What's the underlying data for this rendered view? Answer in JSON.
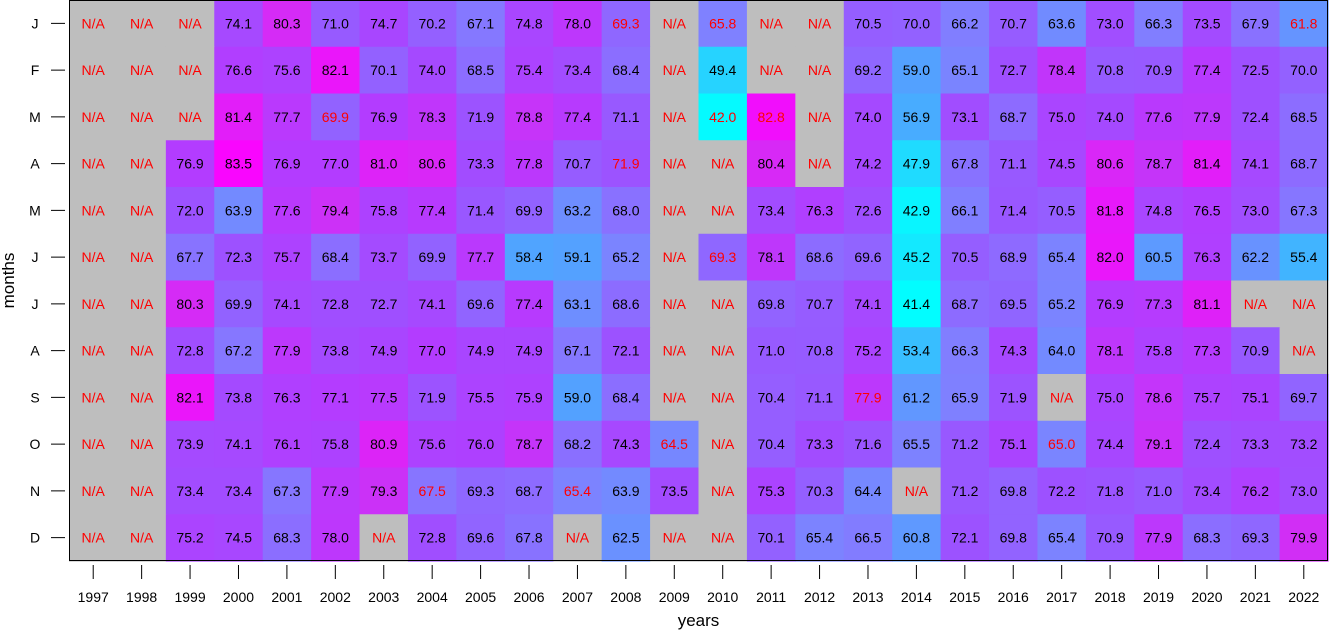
{
  "chart_data": {
    "type": "heatmap",
    "xlabel": "years",
    "ylabel": "months",
    "x": [
      "1997",
      "1998",
      "1999",
      "2000",
      "2001",
      "2002",
      "2003",
      "2004",
      "2005",
      "2006",
      "2007",
      "2008",
      "2009",
      "2010",
      "2011",
      "2012",
      "2013",
      "2014",
      "2015",
      "2016",
      "2017",
      "2018",
      "2019",
      "2020",
      "2021",
      "2022"
    ],
    "y": [
      "J",
      "F",
      "M",
      "A",
      "M",
      "J",
      "J",
      "A",
      "S",
      "O",
      "N",
      "D"
    ],
    "missing_label": "N/A",
    "na_fill": "#bebebe",
    "text_colors": {
      "normal": "#000000",
      "flagged": "#ff0000"
    },
    "color_scale": [
      {
        "at": 41,
        "color": "#00ffff"
      },
      {
        "at": 58,
        "color": "#4da6ff"
      },
      {
        "at": 66,
        "color": "#8080ff"
      },
      {
        "at": 72,
        "color": "#9c52ff"
      },
      {
        "at": 77,
        "color": "#b33cff"
      },
      {
        "at": 80,
        "color": "#d22ef5"
      },
      {
        "at": 84,
        "color": "#ff00ff"
      }
    ],
    "values": [
      [
        null,
        null,
        null,
        74.1,
        80.3,
        71.0,
        74.7,
        70.2,
        67.1,
        74.8,
        78.0,
        69.3,
        null,
        65.8,
        null,
        null,
        70.5,
        70.0,
        66.2,
        70.7,
        63.6,
        73.0,
        66.3,
        73.5,
        67.9,
        61.8
      ],
      [
        null,
        null,
        null,
        76.6,
        75.6,
        82.1,
        70.1,
        74.0,
        68.5,
        75.4,
        73.4,
        68.4,
        null,
        49.4,
        null,
        null,
        69.2,
        59.0,
        65.1,
        72.7,
        78.4,
        70.8,
        70.9,
        77.4,
        72.5,
        70.0
      ],
      [
        null,
        null,
        null,
        81.4,
        77.7,
        69.9,
        76.9,
        78.3,
        71.9,
        78.8,
        77.4,
        71.1,
        null,
        42.0,
        82.8,
        null,
        74.0,
        56.9,
        73.1,
        68.7,
        75.0,
        74.0,
        77.6,
        77.9,
        72.4,
        68.5
      ],
      [
        null,
        null,
        76.9,
        83.5,
        76.9,
        77.0,
        81.0,
        80.6,
        73.3,
        77.8,
        70.7,
        71.9,
        null,
        null,
        80.4,
        null,
        74.2,
        47.9,
        67.8,
        71.1,
        74.5,
        80.6,
        78.7,
        81.4,
        74.1,
        68.7
      ],
      [
        null,
        null,
        72.0,
        63.9,
        77.6,
        79.4,
        75.8,
        77.4,
        71.4,
        69.9,
        63.2,
        68.0,
        null,
        null,
        73.4,
        76.3,
        72.6,
        42.9,
        66.1,
        71.4,
        70.5,
        81.8,
        74.8,
        76.5,
        73.0,
        67.3
      ],
      [
        null,
        null,
        67.7,
        72.3,
        75.7,
        68.4,
        73.7,
        69.9,
        77.7,
        58.4,
        59.1,
        65.2,
        null,
        69.3,
        78.1,
        68.6,
        69.6,
        45.2,
        70.5,
        68.9,
        65.4,
        82.0,
        60.5,
        76.3,
        62.2,
        55.4
      ],
      [
        null,
        null,
        80.3,
        69.9,
        74.1,
        72.8,
        72.7,
        74.1,
        69.6,
        77.4,
        63.1,
        68.6,
        null,
        null,
        69.8,
        70.7,
        74.1,
        41.4,
        68.7,
        69.5,
        65.2,
        76.9,
        77.3,
        81.1,
        null,
        null
      ],
      [
        null,
        null,
        72.8,
        67.2,
        77.9,
        73.8,
        74.9,
        77.0,
        74.9,
        74.9,
        67.1,
        72.1,
        null,
        null,
        71.0,
        70.8,
        75.2,
        53.4,
        66.3,
        74.3,
        64.0,
        78.1,
        75.8,
        77.3,
        70.9,
        null
      ],
      [
        null,
        null,
        82.1,
        73.8,
        76.3,
        77.1,
        77.5,
        71.9,
        75.5,
        75.9,
        59.0,
        68.4,
        null,
        null,
        70.4,
        71.1,
        77.9,
        61.2,
        65.9,
        71.9,
        null,
        75.0,
        78.6,
        75.7,
        75.1,
        69.7
      ],
      [
        null,
        null,
        73.9,
        74.1,
        76.1,
        75.8,
        80.9,
        75.6,
        76.0,
        78.7,
        68.2,
        74.3,
        64.5,
        null,
        70.4,
        73.3,
        71.6,
        65.5,
        71.2,
        75.1,
        65.0,
        74.4,
        79.1,
        72.4,
        73.3,
        73.2
      ],
      [
        null,
        null,
        73.4,
        73.4,
        67.3,
        77.9,
        79.3,
        67.5,
        69.3,
        68.7,
        65.4,
        63.9,
        73.5,
        null,
        75.3,
        70.3,
        64.4,
        null,
        71.2,
        69.8,
        72.2,
        71.8,
        71.0,
        73.4,
        76.2,
        73.0
      ],
      [
        null,
        null,
        75.2,
        74.5,
        68.3,
        78.0,
        null,
        72.8,
        69.6,
        67.8,
        null,
        62.5,
        null,
        null,
        70.1,
        65.4,
        66.5,
        60.8,
        72.1,
        69.8,
        65.4,
        70.9,
        77.9,
        68.3,
        69.3,
        79.9
      ]
    ],
    "flagged": [
      [
        0,
        11
      ],
      [
        0,
        13
      ],
      [
        0,
        25
      ],
      [
        2,
        5
      ],
      [
        2,
        13
      ],
      [
        2,
        14
      ],
      [
        3,
        11
      ],
      [
        5,
        13
      ],
      [
        8,
        16
      ],
      [
        9,
        12
      ],
      [
        9,
        20
      ],
      [
        10,
        7
      ],
      [
        10,
        10
      ]
    ]
  }
}
